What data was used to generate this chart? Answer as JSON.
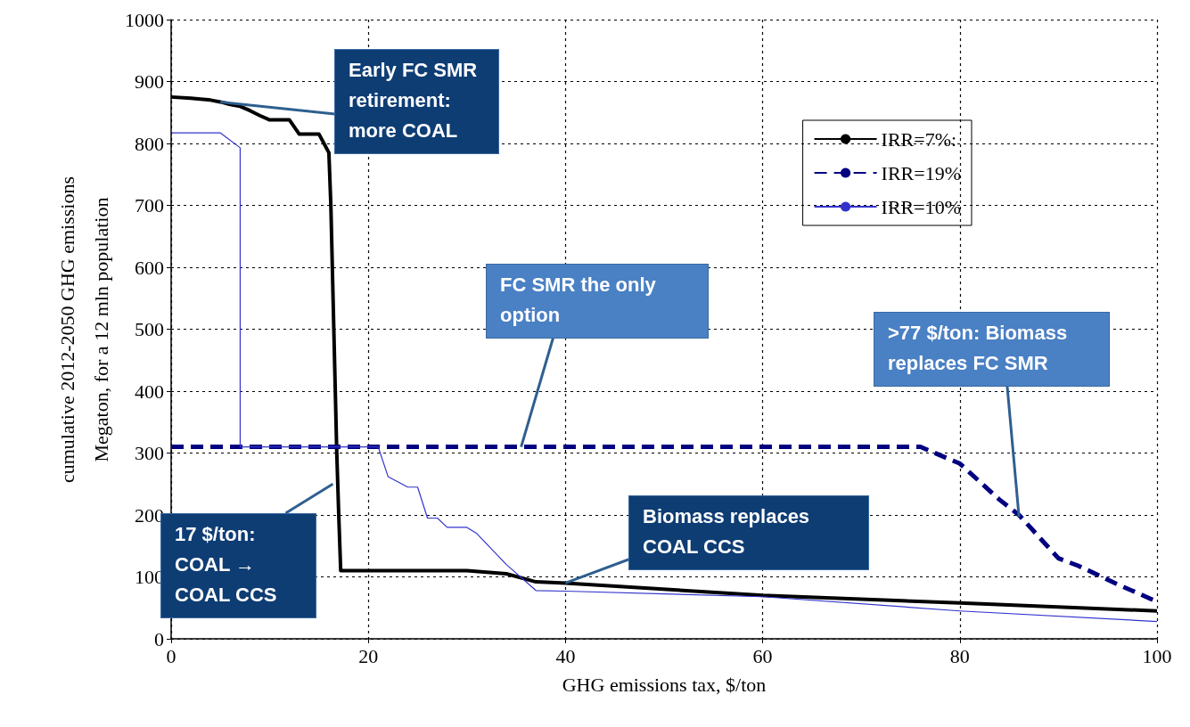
{
  "chart_data": {
    "type": "line",
    "xlabel": "GHG emissions tax, $/ton",
    "ylabel": "cumulative 2012-2050 GHG emissions Megaton, for a 12 mln population",
    "xlim": [
      0,
      100
    ],
    "xticks": [
      0,
      20,
      40,
      60,
      80,
      100
    ],
    "ylim": [
      0,
      1000
    ],
    "yticks": [
      0,
      100,
      200,
      300,
      400,
      500,
      600,
      700,
      800,
      900,
      1000
    ],
    "grid": true,
    "legend": "top right",
    "marker": "none",
    "series": [
      {
        "name": "IRR=7%:",
        "color": "#000000",
        "line_style": "solid",
        "x": [
          0,
          2,
          4,
          5,
          6,
          7,
          8,
          9,
          10,
          12,
          13,
          15,
          15.5,
          16,
          16.2,
          16.5,
          16.8,
          17,
          17.2,
          20,
          30,
          34,
          37,
          40,
          60,
          80,
          100
        ],
        "values": [
          875,
          873,
          870,
          867,
          863,
          860,
          853,
          845,
          838,
          838,
          815,
          815,
          800,
          785,
          700,
          500,
          300,
          200,
          110,
          110,
          110,
          105,
          92,
          90,
          70,
          58,
          45
        ]
      },
      {
        "name": "IRR=19%",
        "color": "#000080",
        "line_style": "dashed",
        "x": [
          0,
          76,
          80,
          84,
          86,
          90,
          92,
          96,
          100
        ],
        "values": [
          310,
          310,
          283,
          225,
          200,
          130,
          118,
          88,
          60
        ]
      },
      {
        "name": "IRR=10%",
        "color": "#3333cc",
        "line_style": "solid",
        "x": [
          0,
          5,
          7,
          7,
          21,
          22,
          24,
          25,
          26,
          27,
          28,
          30,
          31,
          34,
          37,
          40,
          60,
          80,
          100
        ],
        "values": [
          817,
          817,
          793,
          310,
          310,
          262,
          245,
          245,
          195,
          195,
          180,
          180,
          170,
          120,
          78,
          77,
          68,
          45,
          28
        ]
      }
    ],
    "annotations": [
      {
        "text": "Early FC SMR retirement: more COAL",
        "x": 5,
        "y": 867
      },
      {
        "text": "FC SMR the only option",
        "x": 35.5,
        "y": 310
      },
      {
        "text": ">77 $/ton: Biomass replaces FC SMR",
        "x": 86,
        "y": 197
      },
      {
        "text": "Biomass  replaces COAL CCS",
        "x": 40,
        "y": 90
      },
      {
        "text": "17 $/ton: COAL → COAL CCS",
        "x": 16.4,
        "y": 250
      }
    ]
  }
}
